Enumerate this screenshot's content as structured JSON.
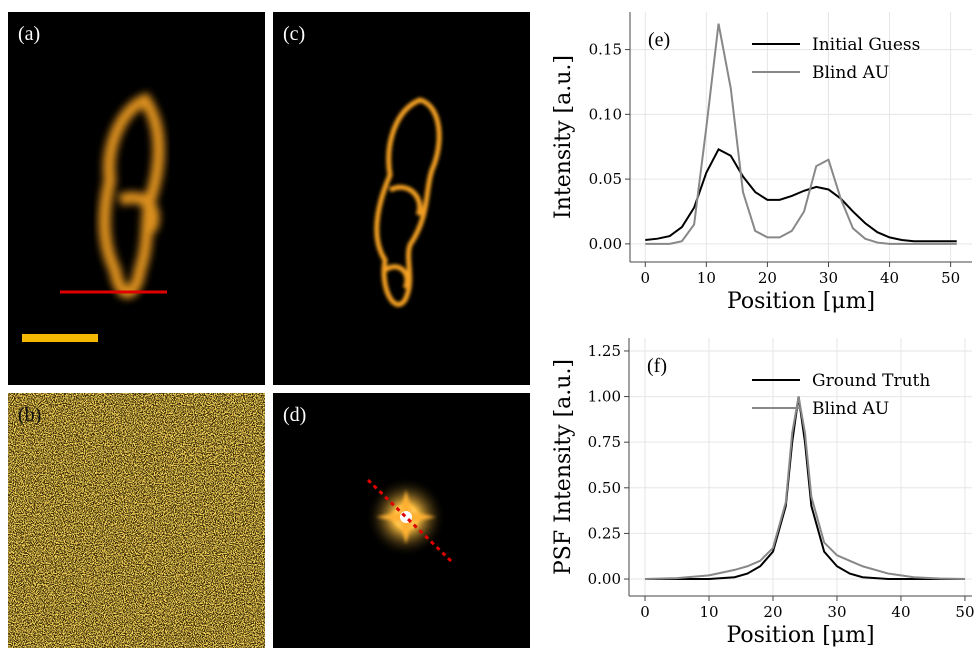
{
  "panels": [
    "(a)",
    "(b)",
    "(c)",
    "(d)"
  ],
  "chart_data": [
    {
      "type": "line",
      "panel_label": "(e)",
      "xlabel": "Position [μm]",
      "ylabel": "Intensity [a.u.]",
      "x": [
        0,
        2,
        4,
        6,
        8,
        10,
        12,
        14,
        16,
        18,
        20,
        22,
        24,
        26,
        28,
        30,
        32,
        34,
        36,
        38,
        40,
        42,
        44,
        46,
        48,
        50,
        51
      ],
      "series": [
        {
          "name": "Initial Guess",
          "color": "#000000",
          "values": [
            0.003,
            0.004,
            0.006,
            0.013,
            0.028,
            0.055,
            0.073,
            0.068,
            0.052,
            0.04,
            0.034,
            0.034,
            0.037,
            0.041,
            0.044,
            0.042,
            0.035,
            0.025,
            0.016,
            0.009,
            0.005,
            0.003,
            0.002,
            0.002,
            0.002,
            0.002,
            0.002
          ]
        },
        {
          "name": "Blind AU",
          "color": "#888888",
          "values": [
            0.0,
            0.0,
            0.0,
            0.002,
            0.015,
            0.09,
            0.17,
            0.12,
            0.04,
            0.01,
            0.005,
            0.005,
            0.01,
            0.025,
            0.06,
            0.065,
            0.035,
            0.012,
            0.004,
            0.001,
            0.0,
            0.0,
            0.0,
            0.0,
            0.0,
            0.0,
            0.0
          ]
        }
      ],
      "xlim": [
        -2.5,
        53.5
      ],
      "xticks": [
        0,
        10,
        20,
        30,
        40,
        50
      ],
      "ylim": [
        -0.014,
        0.179
      ],
      "yticks": [
        {
          "value": 0,
          "label": "0.00"
        },
        {
          "value": 0.05,
          "label": "0.05"
        },
        {
          "value": 0.1,
          "label": "0.10"
        },
        {
          "value": 0.15,
          "label": "0.15"
        }
      ],
      "grid": true,
      "legend": "upper right"
    },
    {
      "type": "line",
      "panel_label": "(f)",
      "xlabel": "Position [μm]",
      "ylabel": "PSF Intensity [a.u.]",
      "x": [
        0,
        5,
        10,
        14,
        16,
        18,
        20,
        22,
        23,
        24,
        25,
        26,
        28,
        30,
        32,
        34,
        38,
        42,
        46,
        50
      ],
      "series": [
        {
          "name": "Ground Truth",
          "color": "#000000",
          "values": [
            0,
            0,
            0,
            0.01,
            0.03,
            0.07,
            0.15,
            0.4,
            0.75,
            1.0,
            0.75,
            0.4,
            0.15,
            0.07,
            0.03,
            0.01,
            0,
            0,
            0,
            0
          ]
        },
        {
          "name": "Blind AU",
          "color": "#888888",
          "values": [
            0,
            0.005,
            0.02,
            0.05,
            0.07,
            0.1,
            0.17,
            0.42,
            0.8,
            1.0,
            0.8,
            0.45,
            0.2,
            0.13,
            0.1,
            0.07,
            0.03,
            0.01,
            0.003,
            0
          ]
        }
      ],
      "xlim": [
        -2.5,
        51.1
      ],
      "xticks": [
        0,
        10,
        20,
        30,
        40,
        50
      ],
      "ylim": [
        -0.093,
        1.321
      ],
      "yticks": [
        {
          "value": 0,
          "label": "0.00"
        },
        {
          "value": 0.25,
          "label": "0.25"
        },
        {
          "value": 0.5,
          "label": "0.50"
        },
        {
          "value": 0.75,
          "label": "0.75"
        },
        {
          "value": 1,
          "label": "1.00"
        },
        {
          "value": 1.25,
          "label": "1.25"
        }
      ],
      "grid": true,
      "legend": "upper right"
    }
  ]
}
